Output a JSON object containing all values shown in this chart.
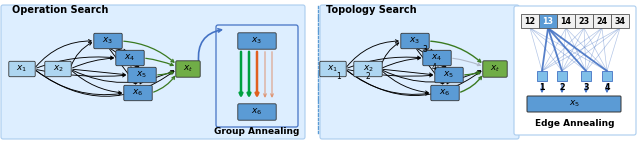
{
  "fig_width": 6.4,
  "fig_height": 1.41,
  "dpi": 100,
  "title_left": "Operation Search",
  "title_right": "Topology Search",
  "node_blue": "#5b9bd5",
  "node_green": "#70ad47",
  "node_light": "#aed6f1",
  "arrow_green": "#3a7a20",
  "arrow_blue": "#4472c4",
  "edge_cells": [
    "12",
    "13",
    "14",
    "23",
    "24",
    "34"
  ],
  "edge_cell_highlight": 1,
  "group_anneal_label": "Group Annealing",
  "edge_anneal_label": "Edge Annealing",
  "bg_panel": "#ddeeff",
  "divider_color": "#5b9bd5"
}
